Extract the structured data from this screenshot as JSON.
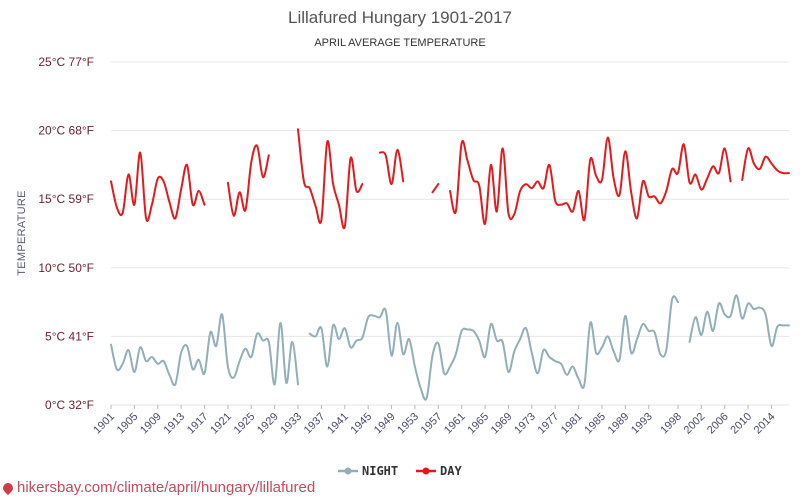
{
  "chart_data": {
    "type": "line",
    "title": "Lillafured Hungary 1901-2017",
    "subtitle": "APRIL AVERAGE TEMPERATURE",
    "ylabel": "TEMPERATURE",
    "ylim": [
      0,
      25
    ],
    "y_ticks": [
      {
        "value": 0,
        "label": "0°C 32°F"
      },
      {
        "value": 5,
        "label": "5°C 41°F"
      },
      {
        "value": 10,
        "label": "10°C 50°F"
      },
      {
        "value": 15,
        "label": "15°C 59°F"
      },
      {
        "value": 20,
        "label": "20°C 68°F"
      },
      {
        "value": 25,
        "label": "25°C 77°F"
      }
    ],
    "x_start": 1901,
    "x_end": 2017,
    "x_tick_labels": [
      "1901",
      "1905",
      "1909",
      "1913",
      "1917",
      "1921",
      "1925",
      "1929",
      "1933",
      "1937",
      "1941",
      "1945",
      "1949",
      "1953",
      "1957",
      "1961",
      "1965",
      "1969",
      "1973",
      "1977",
      "1981",
      "1985",
      "1989",
      "1993",
      "1998",
      "2002",
      "2006",
      "2010",
      "2014"
    ],
    "grid": true,
    "legend_position": "bottom-center",
    "series": [
      {
        "name": "NIGHT",
        "color": "#92aeb8",
        "values": [
          4.4,
          2.6,
          3.0,
          4.0,
          2.4,
          4.2,
          3.2,
          3.5,
          3.0,
          3.2,
          2.2,
          1.5,
          3.8,
          4.3,
          2.6,
          3.3,
          2.3,
          5.3,
          4.3,
          6.6,
          2.8,
          2.0,
          3.2,
          4.1,
          3.5,
          5.2,
          4.7,
          4.6,
          1.5,
          6.0,
          1.6,
          4.6,
          1.5,
          null,
          5.2,
          5.0,
          5.6,
          2.8,
          5.8,
          4.8,
          5.6,
          4.2,
          4.7,
          4.9,
          6.4,
          6.5,
          6.4,
          6.9,
          3.6,
          6.0,
          3.7,
          4.8,
          2.8,
          1.2,
          0.5,
          3.6,
          4.5,
          2.3,
          2.8,
          3.7,
          5.4,
          5.5,
          5.4,
          4.7,
          3.5,
          5.9,
          4.7,
          4.6,
          2.4,
          3.9,
          4.8,
          5.6,
          3.8,
          2.3,
          4.0,
          3.5,
          3.2,
          3.0,
          2.2,
          2.8,
          1.9,
          1.5,
          6.0,
          3.8,
          4.2,
          5.0,
          3.9,
          3.3,
          6.5,
          3.8,
          4.8,
          5.9,
          5.4,
          5.3,
          3.7,
          4.0,
          7.7,
          7.5,
          null,
          4.6,
          6.4,
          5.1,
          6.8,
          5.4,
          7.4,
          6.6,
          6.5,
          8.0,
          6.3,
          7.4,
          7.0,
          7.1,
          6.6,
          4.3,
          5.7,
          5.8,
          5.8
        ]
      },
      {
        "name": "DAY",
        "color": "#e31a1c",
        "values": [
          16.3,
          14.4,
          14.0,
          16.8,
          14.6,
          18.4,
          13.6,
          14.6,
          16.5,
          16.3,
          14.8,
          13.6,
          15.7,
          17.5,
          14.6,
          15.6,
          14.6,
          null,
          null,
          null,
          16.2,
          13.8,
          15.5,
          14.2,
          17.7,
          18.9,
          16.6,
          18.2,
          null,
          null,
          null,
          null,
          20.1,
          16.3,
          15.8,
          14.5,
          13.5,
          19.2,
          16.1,
          14.6,
          13.0,
          18.0,
          15.6,
          16.1,
          null,
          null,
          18.4,
          18.2,
          16.1,
          18.6,
          16.3,
          null,
          null,
          null,
          null,
          15.5,
          16.1,
          null,
          15.6,
          14.1,
          19.1,
          17.8,
          16.4,
          16.0,
          13.2,
          17.5,
          14.1,
          18.7,
          14.0,
          13.9,
          15.6,
          16.1,
          15.8,
          16.3,
          15.8,
          17.5,
          14.9,
          14.6,
          14.7,
          14.1,
          15.6,
          13.5,
          17.9,
          16.7,
          16.4,
          19.5,
          16.5,
          15.3,
          18.5,
          15.5,
          13.6,
          16.3,
          15.2,
          15.2,
          14.7,
          15.6,
          17.2,
          16.9,
          19.0,
          16.2,
          16.8,
          15.7,
          16.5,
          17.4,
          16.9,
          18.7,
          16.3,
          null,
          16.4,
          18.7,
          17.6,
          17.2,
          18.1,
          17.6,
          17.1,
          16.9,
          16.9
        ]
      }
    ]
  },
  "legend": {
    "night_label": "NIGHT",
    "day_label": "DAY"
  },
  "footer": {
    "text": "hikersbay.com/climate/april/hungary/lillafured"
  }
}
